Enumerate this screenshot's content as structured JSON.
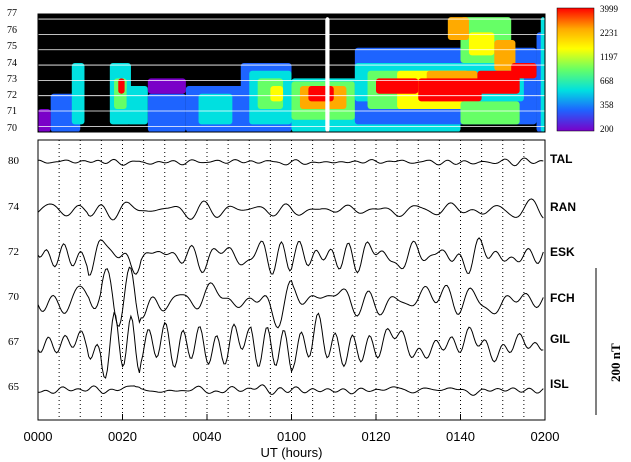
{
  "chart_data": [
    {
      "type": "heatmap",
      "y_ticks": [
        "77",
        "76",
        "75",
        "74",
        "73",
        "72",
        "71",
        "70"
      ],
      "colorbar": {
        "ticks": [
          "3999",
          "2231",
          "1197",
          "668",
          "358",
          "200"
        ],
        "colors": [
          "#ff0000",
          "#ffaa00",
          "#ffff00",
          "#66ff66",
          "#00e0e0",
          "#1e64ff",
          "#7a00c8"
        ]
      },
      "background_color": "#000000",
      "regions": [
        {
          "x0": 0,
          "x1": 3,
          "y0": 69.5,
          "y1": 71,
          "color": "#7a00c8"
        },
        {
          "x0": 3,
          "x1": 10,
          "y0": 69.5,
          "y1": 72,
          "color": "#1e64ff"
        },
        {
          "x0": 8,
          "x1": 11,
          "y0": 70,
          "y1": 74,
          "color": "#00e0e0"
        },
        {
          "x0": 17,
          "x1": 22,
          "y0": 70,
          "y1": 74,
          "color": "#00e0e0"
        },
        {
          "x0": 18,
          "x1": 21,
          "y0": 71,
          "y1": 73,
          "color": "#66ff66"
        },
        {
          "x0": 19,
          "x1": 20.5,
          "y0": 72,
          "y1": 73,
          "color": "#ff0000"
        },
        {
          "x0": 21,
          "x1": 26,
          "y0": 70,
          "y1": 72.5,
          "color": "#00e0e0"
        },
        {
          "x0": 26,
          "x1": 35,
          "y0": 69.5,
          "y1": 72,
          "color": "#1e64ff"
        },
        {
          "x0": 26,
          "x1": 35,
          "y0": 72,
          "y1": 73,
          "color": "#7a00c8"
        },
        {
          "x0": 35,
          "x1": 50,
          "y0": 69.5,
          "y1": 72.5,
          "color": "#1e64ff"
        },
        {
          "x0": 38,
          "x1": 46,
          "y0": 70,
          "y1": 72,
          "color": "#00e0e0"
        },
        {
          "x0": 48,
          "x1": 60,
          "y0": 69.5,
          "y1": 74,
          "color": "#1e64ff"
        },
        {
          "x0": 50,
          "x1": 60,
          "y0": 70,
          "y1": 73.5,
          "color": "#00e0e0"
        },
        {
          "x0": 52,
          "x1": 58,
          "y0": 71,
          "y1": 73,
          "color": "#66ff66"
        },
        {
          "x0": 55,
          "x1": 58,
          "y0": 71.5,
          "y1": 72.5,
          "color": "#ffff00"
        },
        {
          "x0": 60,
          "x1": 100,
          "y0": 69.5,
          "y1": 73,
          "color": "#00e0e0"
        },
        {
          "x0": 60,
          "x1": 75,
          "y0": 70.3,
          "y1": 72.8,
          "color": "#66ff66"
        },
        {
          "x0": 62,
          "x1": 73,
          "y0": 71,
          "y1": 72.5,
          "color": "#ffaa00"
        },
        {
          "x0": 64,
          "x1": 70,
          "y0": 71.5,
          "y1": 72.5,
          "color": "#ff0000"
        },
        {
          "x0": 75,
          "x1": 118,
          "y0": 70,
          "y1": 75,
          "color": "#1e64ff"
        },
        {
          "x0": 75,
          "x1": 115,
          "y0": 71.5,
          "y1": 74,
          "color": "#00e0e0"
        },
        {
          "x0": 78,
          "x1": 100,
          "y0": 71,
          "y1": 73.5,
          "color": "#66ff66"
        },
        {
          "x0": 85,
          "x1": 102,
          "y0": 71,
          "y1": 73.5,
          "color": "#ffff00"
        },
        {
          "x0": 92,
          "x1": 104,
          "y0": 71.5,
          "y1": 73.5,
          "color": "#ffaa00"
        },
        {
          "x0": 100,
          "x1": 112,
          "y0": 74,
          "y1": 77,
          "color": "#66ff66"
        },
        {
          "x0": 102,
          "x1": 108,
          "y0": 74.5,
          "y1": 76,
          "color": "#ffff00"
        },
        {
          "x0": 97,
          "x1": 102,
          "y0": 75.5,
          "y1": 77,
          "color": "#ffaa00"
        },
        {
          "x0": 108,
          "x1": 113,
          "y0": 73.5,
          "y1": 75.5,
          "color": "#ffaa00"
        },
        {
          "x0": 112,
          "x1": 118,
          "y0": 73,
          "y1": 74,
          "color": "#ff0000"
        },
        {
          "x0": 80,
          "x1": 90,
          "y0": 72,
          "y1": 73,
          "color": "#ff0000"
        },
        {
          "x0": 90,
          "x1": 105,
          "y0": 71.5,
          "y1": 73,
          "color": "#ff0000"
        },
        {
          "x0": 104,
          "x1": 114,
          "y0": 72,
          "y1": 73.5,
          "color": "#ff0000"
        },
        {
          "x0": 100,
          "x1": 114,
          "y0": 70,
          "y1": 71.5,
          "color": "#66ff66"
        },
        {
          "x0": 118,
          "x1": 120,
          "y0": 69.5,
          "y1": 76,
          "color": "#1e64ff"
        },
        {
          "x0": 119,
          "x1": 120,
          "y0": 69.5,
          "y1": 77,
          "color": "#00e0e0"
        },
        {
          "x0": 68,
          "x1": 69,
          "y0": 69.5,
          "y1": 77,
          "color": "#ffffff"
        }
      ]
    },
    {
      "type": "line",
      "x_range": [
        0,
        120
      ],
      "x_ticks": [
        {
          "value": 0,
          "label": "0000"
        },
        {
          "value": 20,
          "label": "0020"
        },
        {
          "value": 40,
          "label": "0040"
        },
        {
          "value": 60,
          "label": "0100"
        },
        {
          "value": 80,
          "label": "0120"
        },
        {
          "value": 100,
          "label": "0140"
        },
        {
          "value": 120,
          "label": "0200"
        }
      ],
      "xlabel": "UT (hours)",
      "dotted_minutes": [
        5,
        10,
        15,
        20,
        25,
        30,
        35,
        40,
        45,
        50,
        55,
        60,
        65,
        70,
        75,
        80,
        85,
        90,
        95,
        100,
        105,
        110,
        115
      ],
      "y_ticks": [
        "80",
        "74",
        "72",
        "70",
        "67",
        "65"
      ],
      "scale_label": "200 nT",
      "series": [
        {
          "name": "TAL",
          "amp": 0.1,
          "seed": 1
        },
        {
          "name": "RAN",
          "amp": 0.35,
          "seed": 2
        },
        {
          "name": "ESK",
          "amp": 0.6,
          "seed": 3
        },
        {
          "name": "FCH",
          "amp": 0.85,
          "seed": 4
        },
        {
          "name": "GIL",
          "amp": 0.8,
          "seed": 5
        },
        {
          "name": "ISL",
          "amp": 0.15,
          "seed": 6
        }
      ]
    }
  ]
}
